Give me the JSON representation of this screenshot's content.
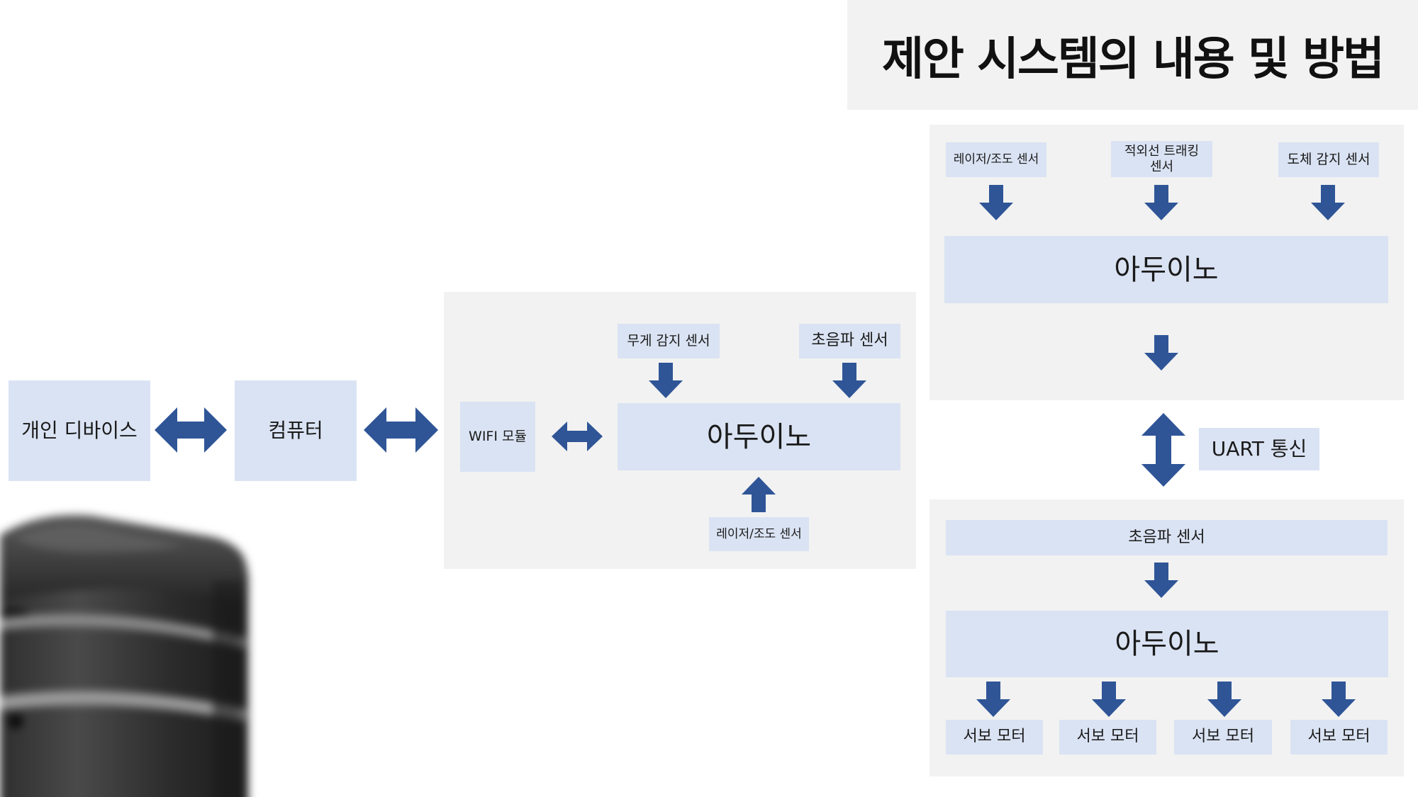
{
  "title": "제안 시스템의 내용 및 방법",
  "left_flow": {
    "personal_device": "개인 디바이스",
    "computer": "컴퓨터"
  },
  "center_panel": {
    "wifi_module": "WIFI 모듈",
    "weight_sensor": "무게 감지 센서",
    "ultrasonic_sensor": "초음파 센서",
    "arduino": "아두이노",
    "laser_light_sensor": "레이저/조도 센서"
  },
  "right_top_panel": {
    "laser_light_sensor": "레이저/조도 센서",
    "ir_tracking_sensor": "적외선 트래킹\n센서",
    "conductor_sensor": "도체 감지 센서",
    "arduino": "아두이노"
  },
  "uart_label": "UART 통신",
  "right_bottom_panel": {
    "ultrasonic_sensor": "초음파 센서",
    "arduino": "아두이노",
    "servo_motors": [
      "서보 모터",
      "서보 모터",
      "서보 모터",
      "서보 모터"
    ]
  },
  "colors": {
    "box_fill": "#dae3f3",
    "panel_fill": "#f2f2f2",
    "arrow": "#2f5597"
  }
}
